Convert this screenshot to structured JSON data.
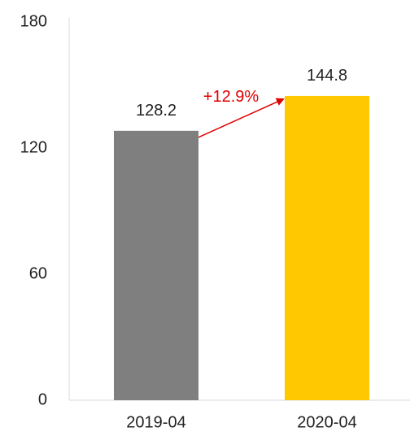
{
  "chart_data": {
    "type": "bar",
    "categories": [
      "2019-04",
      "2020-04"
    ],
    "values": [
      128.2,
      144.8
    ],
    "colors": [
      "#7f7f7f",
      "#ffc800"
    ],
    "ylim": [
      0,
      180
    ],
    "yticks": [
      0,
      60,
      120,
      180
    ],
    "annotation": "+12.9%",
    "annotation_color": "#e00000",
    "grid": false
  }
}
